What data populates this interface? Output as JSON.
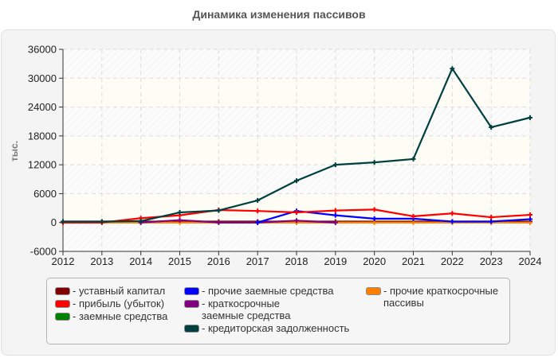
{
  "title": "Динамика изменения пассивов",
  "colors": {
    "frame_bg": "#f4f4f4",
    "plot_bg": "#fdfdf8",
    "grid": "#dddddd"
  },
  "chart_data": {
    "type": "line",
    "title": "Динамика изменения пассивов",
    "xlabel": "",
    "ylabel": "тыс.",
    "x": [
      2012,
      2013,
      2014,
      2015,
      2016,
      2017,
      2018,
      2019,
      2020,
      2021,
      2022,
      2023,
      2024
    ],
    "xlim": [
      2012,
      2024
    ],
    "ylim": [
      -6000,
      36000
    ],
    "yticks": [
      -6000,
      0,
      6000,
      12000,
      18000,
      24000,
      30000,
      36000
    ],
    "grid": true,
    "legend_position": "bottom",
    "series": [
      {
        "name": "уставный капитал",
        "color": "#800000",
        "values": [
          200,
          200,
          200,
          200,
          200,
          200,
          200,
          200,
          200,
          200,
          200,
          200,
          200
        ]
      },
      {
        "name": "прибыль (убыток)",
        "color": "#ff0000",
        "values": [
          0,
          0,
          900,
          1500,
          2600,
          2400,
          2100,
          2500,
          2700,
          1300,
          1900,
          1100,
          1600
        ]
      },
      {
        "name": "заемные средства",
        "color": "#008000",
        "values": [
          null,
          null,
          null,
          null,
          null,
          null,
          null,
          null,
          null,
          null,
          null,
          null,
          null
        ]
      },
      {
        "name": "прочие заемные средства",
        "color": "#0000ff",
        "values": [
          null,
          null,
          null,
          null,
          null,
          0,
          2400,
          1500,
          800,
          800,
          200,
          200,
          700
        ]
      },
      {
        "name": "краткосрочные заемные средства",
        "color": "#800080",
        "values": [
          null,
          null,
          0,
          500,
          0,
          0,
          400,
          0,
          null,
          null,
          null,
          null,
          null
        ]
      },
      {
        "name": "кредиторская задолженность",
        "color": "#004040",
        "values": [
          200,
          200,
          300,
          2100,
          2500,
          4600,
          8700,
          12000,
          12500,
          13200,
          32000,
          19800,
          21800
        ]
      },
      {
        "name": "прочие краткосрочные пассивы",
        "color": "#ff8000",
        "values": [
          0,
          0,
          0,
          0,
          0,
          0,
          0,
          0,
          0,
          0,
          0,
          0,
          0
        ]
      }
    ]
  },
  "axis": {
    "y_label": "тыс.",
    "y_ticks": [
      "36000",
      "30000",
      "24000",
      "18000",
      "12000",
      "6000",
      "0",
      "-6000"
    ],
    "x_ticks": [
      "2012",
      "2013",
      "2014",
      "2015",
      "2016",
      "2017",
      "2018",
      "2019",
      "2020",
      "2021",
      "2022",
      "2023",
      "2024"
    ]
  },
  "legend": {
    "col1": [
      {
        "label": "- уставный капитал",
        "color": "#800000"
      },
      {
        "label": "- прибыль (убыток)",
        "color": "#ff0000"
      },
      {
        "label": "- заемные средства",
        "color": "#008000"
      }
    ],
    "col2": [
      {
        "label": "- прочие заемные средства",
        "color": "#0000ff"
      },
      {
        "label": "- краткосрочные заемные средства",
        "color": "#800080"
      },
      {
        "label": "- кредиторская задолженность",
        "color": "#004040"
      }
    ],
    "col3": [
      {
        "label": "- прочие краткосрочные пассивы",
        "color": "#ff8000"
      }
    ]
  }
}
